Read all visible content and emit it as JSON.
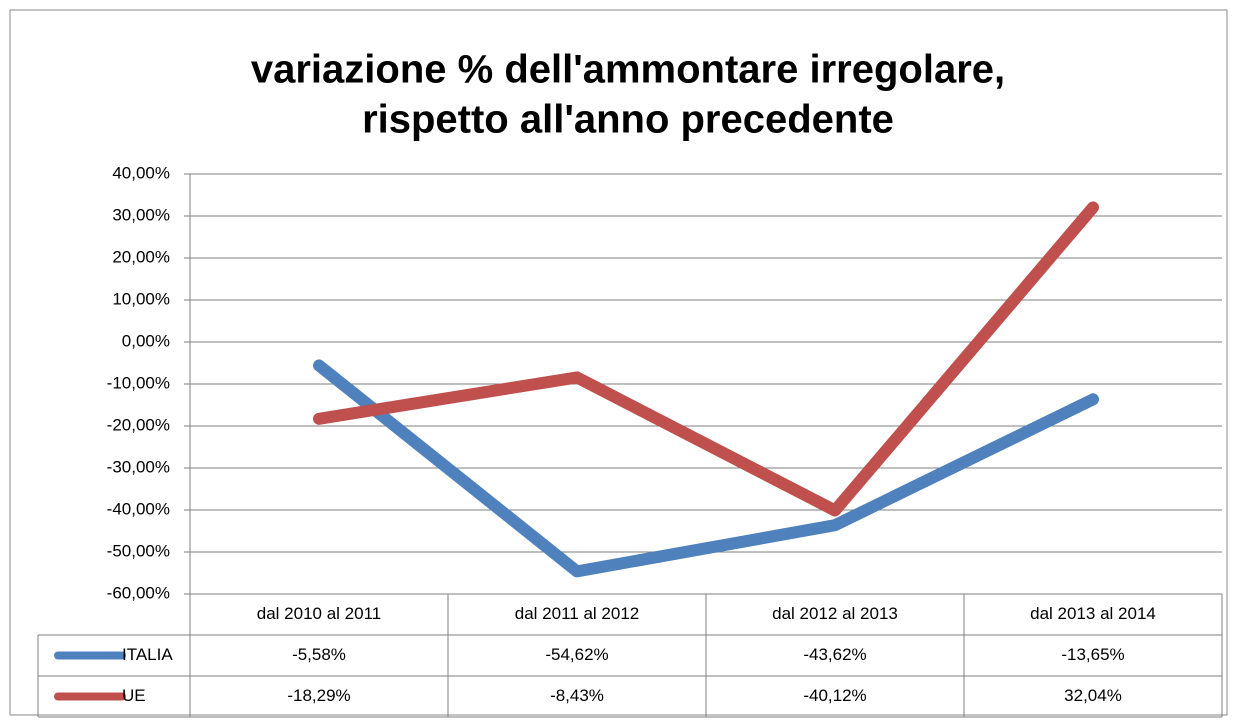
{
  "chart_data": {
    "type": "line",
    "title": [
      "variazione %  dell'ammontare irregolare,",
      "rispetto all'anno precedente"
    ],
    "categories": [
      "dal 2010 al 2011",
      "dal 2011 al 2012",
      "dal 2012 al 2013",
      "dal 2013 al 2014"
    ],
    "series": [
      {
        "name": "ITALIA",
        "color": "#4f81bd",
        "values": [
          -5.58,
          -54.62,
          -43.62,
          -13.65
        ],
        "value_labels": [
          "-5,58%",
          "-54,62%",
          "-43,62%",
          "-13,65%"
        ]
      },
      {
        "name": "UE",
        "color": "#c0504d",
        "values": [
          -18.29,
          -8.43,
          -40.12,
          32.04
        ],
        "value_labels": [
          "-18,29%",
          "-8,43%",
          "-40,12%",
          "32,04%"
        ]
      }
    ],
    "ylim": [
      -60,
      40
    ],
    "yticks": [
      {
        "value": -60,
        "label": "-60,00%"
      },
      {
        "value": -50,
        "label": "-50,00%"
      },
      {
        "value": -40,
        "label": "-40,00%"
      },
      {
        "value": -30,
        "label": "-30,00%"
      },
      {
        "value": -20,
        "label": "-20,00%"
      },
      {
        "value": -10,
        "label": "-10,00%"
      },
      {
        "value": 0,
        "label": "0,00%"
      },
      {
        "value": 10,
        "label": "10,00%"
      },
      {
        "value": 20,
        "label": "20,00%"
      },
      {
        "value": 30,
        "label": "30,00%"
      },
      {
        "value": 40,
        "label": "40,00%"
      }
    ],
    "grid": true
  }
}
